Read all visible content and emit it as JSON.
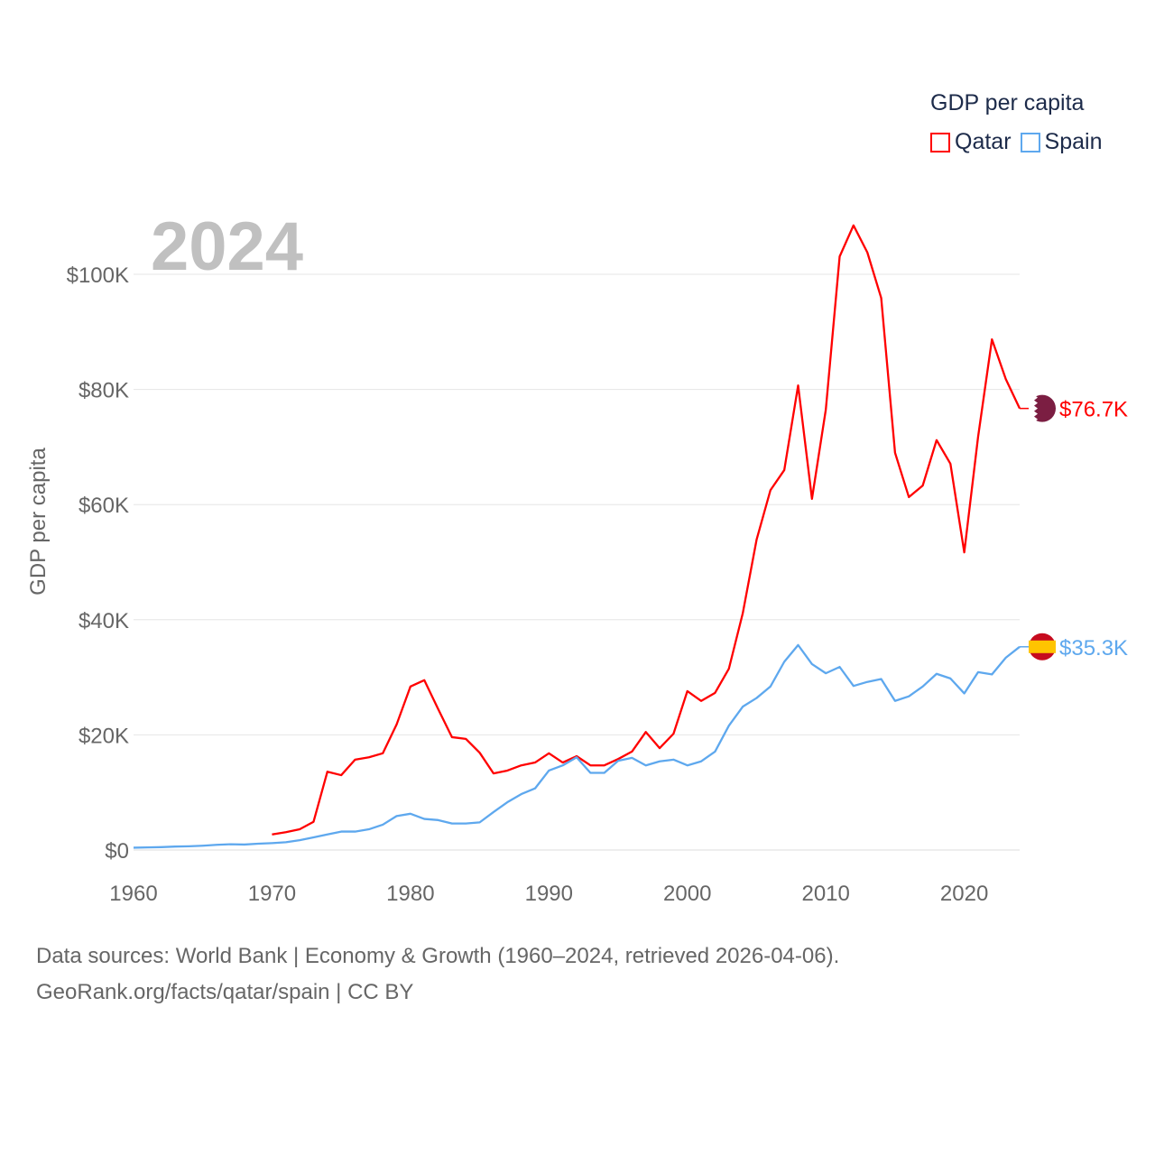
{
  "legend": {
    "title": "GDP per capita",
    "items": [
      {
        "label": "Qatar",
        "color": "#ff0000"
      },
      {
        "label": "Spain",
        "color": "#5ea8ee"
      }
    ]
  },
  "year_label": "2024",
  "footer": {
    "line1": "Data sources: World Bank | Economy & Growth (1960–2024, retrieved 2026-04-06).",
    "line2": "GeoRank.org/facts/qatar/spain | CC BY"
  },
  "chart_data": {
    "type": "line",
    "title": "GDP per capita",
    "xlabel": "",
    "ylabel": "GDP per capita",
    "xlim": [
      1960,
      2024
    ],
    "ylim": [
      0,
      110
    ],
    "y_unit": "thousand USD",
    "x_ticks": [
      "1960",
      "1970",
      "1980",
      "1990",
      "2000",
      "2010",
      "2020"
    ],
    "y_ticks": [
      "$0",
      "$20K",
      "$40K",
      "$60K",
      "$80K",
      "$100K"
    ],
    "grid": true,
    "legend_position": "top-right",
    "series": [
      {
        "name": "Qatar",
        "color": "#ff0000",
        "end_label": "$76.7K",
        "start_year": 1970,
        "values": [
          2.7,
          3.1,
          3.6,
          4.9,
          13.6,
          13.0,
          15.7,
          16.1,
          16.8,
          21.8,
          28.4,
          29.5,
          24.5,
          19.6,
          19.3,
          16.9,
          13.3,
          13.8,
          14.7,
          15.2,
          16.8,
          15.2,
          16.3,
          14.7,
          14.7,
          15.8,
          17.1,
          20.5,
          17.7,
          20.2,
          27.6,
          25.9,
          27.3,
          31.5,
          41.1,
          53.9,
          62.5,
          66.0,
          80.7,
          61.0,
          76.5,
          103.1,
          108.5,
          103.8,
          95.9,
          69.0,
          61.3,
          63.3,
          71.2,
          67.1,
          51.7,
          71.8,
          88.7,
          81.8,
          76.7
        ]
      },
      {
        "name": "Spain",
        "color": "#5ea8ee",
        "end_label": "$35.3K",
        "start_year": 1960,
        "values": [
          0.4,
          0.45,
          0.5,
          0.6,
          0.65,
          0.75,
          0.9,
          1.0,
          0.95,
          1.1,
          1.2,
          1.35,
          1.7,
          2.2,
          2.7,
          3.2,
          3.2,
          3.6,
          4.4,
          5.9,
          6.3,
          5.4,
          5.2,
          4.6,
          4.6,
          4.8,
          6.6,
          8.3,
          9.7,
          10.7,
          13.8,
          14.7,
          16.1,
          13.4,
          13.4,
          15.5,
          16.0,
          14.7,
          15.4,
          15.7,
          14.7,
          15.4,
          17.1,
          21.6,
          24.9,
          26.4,
          28.4,
          32.7,
          35.6,
          32.3,
          30.7,
          31.8,
          28.5,
          29.2,
          29.7,
          25.9,
          26.7,
          28.4,
          30.6,
          29.8,
          27.2,
          30.9,
          30.5,
          33.4,
          35.3
        ]
      }
    ]
  }
}
